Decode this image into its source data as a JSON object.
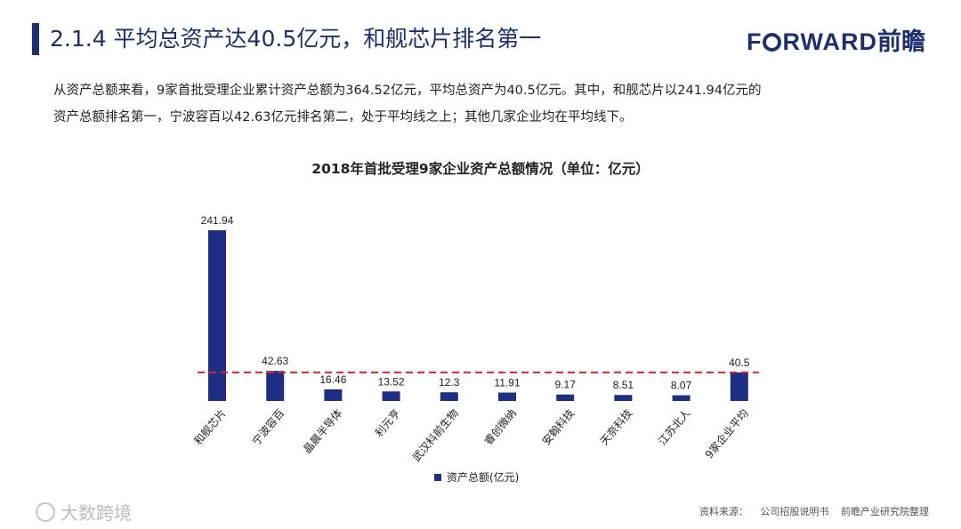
{
  "header": {
    "title": "2.1.4 平均总资产达40.5亿元，和舰芯片排名第一",
    "logo_latin": "F RWARD",
    "logo_cn": "前瞻"
  },
  "intro": {
    "line1": "从资产总额来看，9家首批受理企业累计资产总额为364.52亿元，平均总资产为40.5亿元。其中，和舰芯片以241.94亿元的",
    "line2": "资产总额排名第一，宁波容百以42.63亿元排名第二，处于平均线之上；其他几家企业均在平均线下。"
  },
  "source": {
    "label": "资料来源：",
    "text1": "公司招股说明书",
    "text2": "前瞻产业研究院整理"
  },
  "watermark": {
    "text": "大数跨境"
  },
  "colors": {
    "brand": "#1d2f6e",
    "bar": "#1d2f85",
    "average_line": "#d9262c"
  },
  "chart_data": {
    "type": "bar",
    "title": "2018年首批受理9家企业资产总额情况（单位：亿元）",
    "categories": [
      "和舰芯片",
      "宁波容百",
      "晶晨半导体",
      "利元亨",
      "武汉科前生物",
      "睿创微纳",
      "安翰科技",
      "天奈科技",
      "江苏北人",
      "9家企业平均"
    ],
    "series": [
      {
        "name": "资产总额(亿元)",
        "values": [
          241.94,
          42.63,
          16.46,
          13.52,
          12.3,
          11.91,
          9.17,
          8.51,
          8.07,
          40.5
        ],
        "labels": [
          "241.94",
          "42.63",
          "16.46",
          "13.52",
          "12.3",
          "11.91",
          "9.17",
          "8.51",
          "8.07",
          "40.5"
        ]
      }
    ],
    "average_line": 40.5,
    "ylim": [
      0,
      241.94
    ],
    "grid": false,
    "legend": "bottom-center"
  }
}
